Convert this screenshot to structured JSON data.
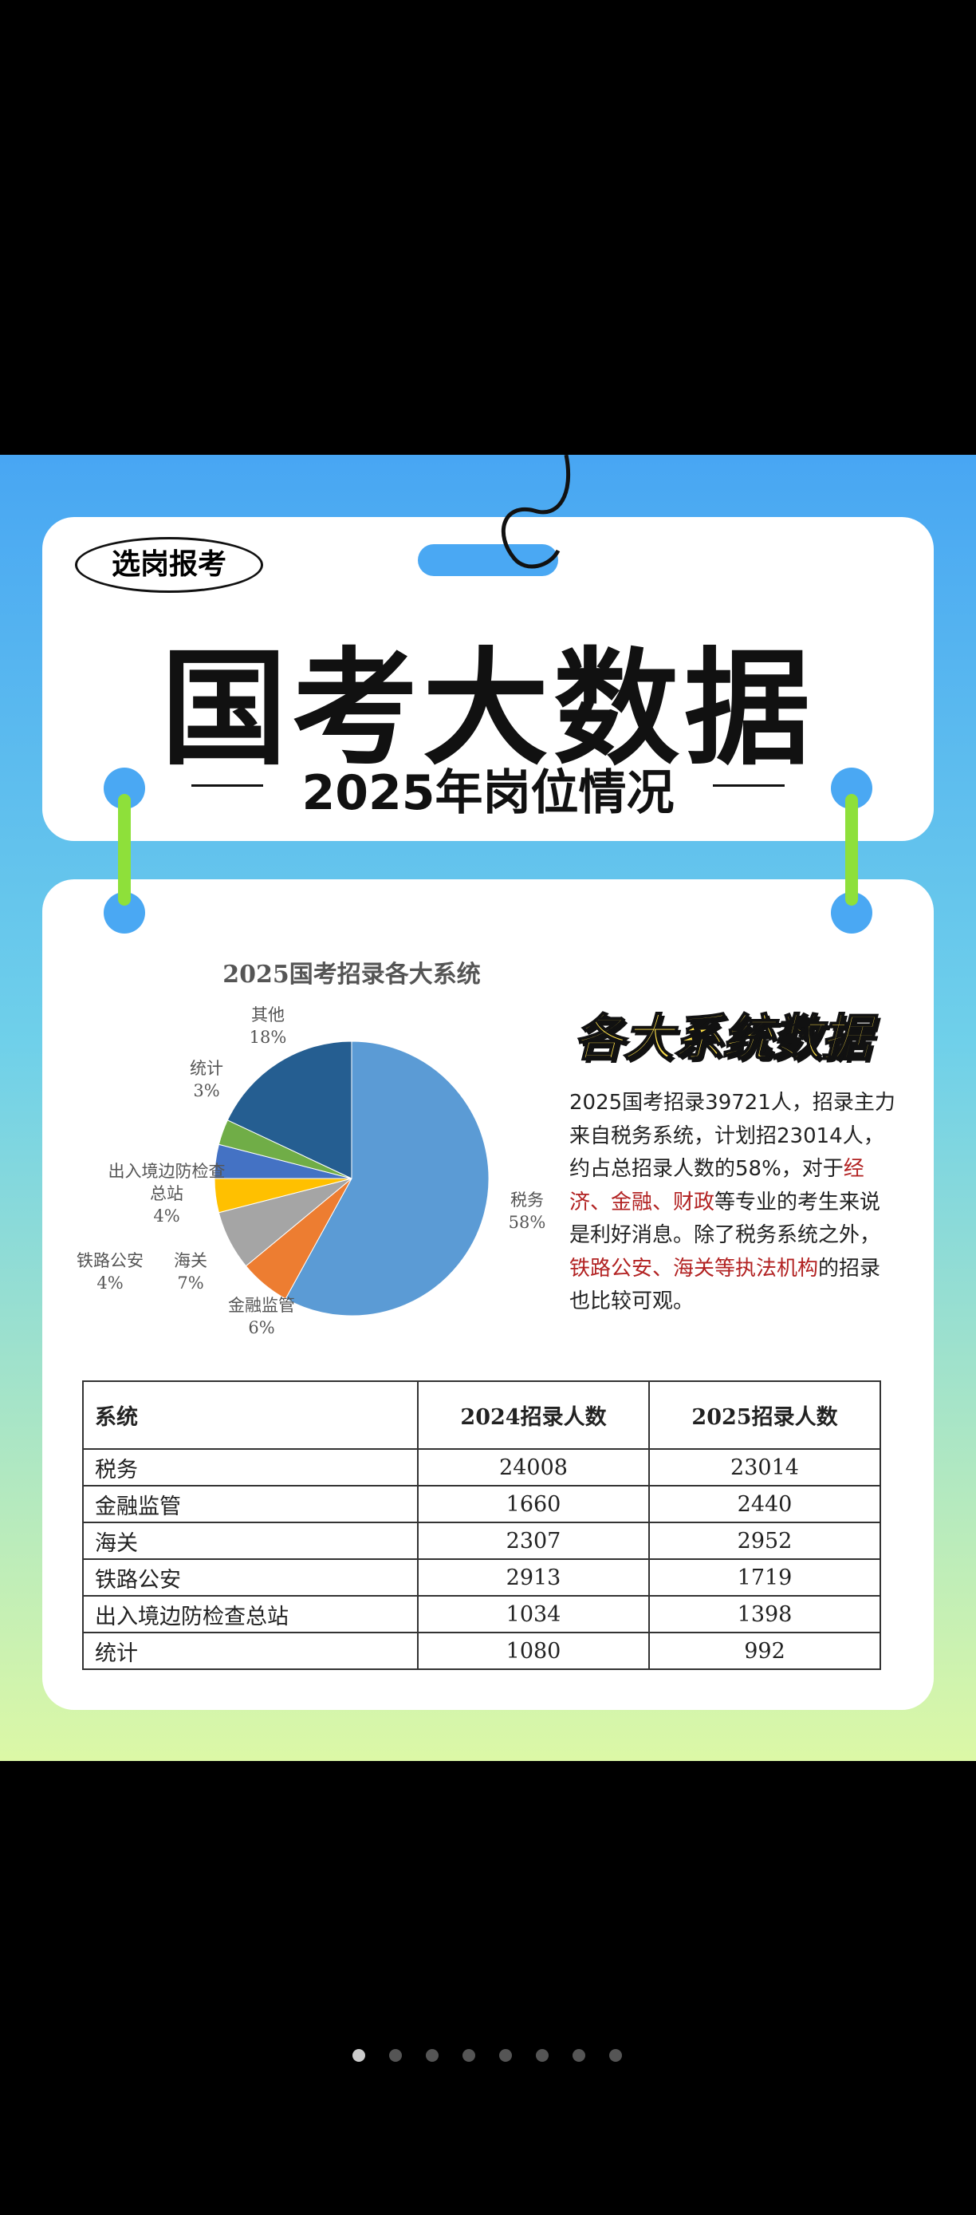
{
  "badge": "选岗报考",
  "title": "国考大数据",
  "subtitle": "2025年岗位情况",
  "chart_data": {
    "type": "pie",
    "title": "2025国考招录各大系统",
    "categories": [
      "税务",
      "金融监管",
      "海关",
      "铁路公安",
      "出入境边防检查总站",
      "统计",
      "其他"
    ],
    "values": [
      58,
      6,
      7,
      4,
      4,
      3,
      18
    ],
    "value_labels": [
      "58%",
      "6%",
      "7%",
      "4%",
      "4%",
      "3%",
      "18%"
    ],
    "colors": [
      "#5b9bd5",
      "#ed7d31",
      "#a5a5a5",
      "#ffc000",
      "#4472c4",
      "#70ad47",
      "#255e91"
    ]
  },
  "section_title": "各大系统数据",
  "paragraph": [
    "2025国考招录39721人，招录主力来自税务系统，计划招23014人，约占总招录人数的58%，对于",
    "经济、金融、财政",
    "等专业的考生来说是利好消息。除了税务系统之外，",
    "铁路公安、海关等执法机构",
    "的招录也比较可观。"
  ],
  "table": {
    "header": [
      "系统",
      "2024招录人数",
      "2025招录人数"
    ],
    "rows": [
      [
        "税务",
        "24008",
        "23014"
      ],
      [
        "金融监管",
        "1660",
        "2440"
      ],
      [
        "海关",
        "2307",
        "2952"
      ],
      [
        "铁路公安",
        "2913",
        "1719"
      ],
      [
        "出入境边防检查总站",
        "1034",
        "1398"
      ],
      [
        "统计",
        "1080",
        "992"
      ]
    ]
  }
}
